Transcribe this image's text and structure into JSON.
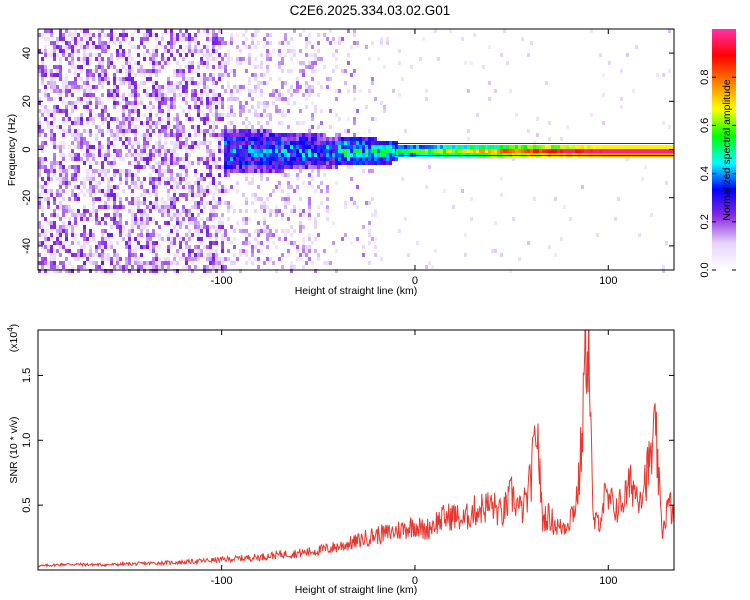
{
  "page": {
    "title": "C2E6.2025.334.03.02.G01"
  },
  "chart_data": [
    {
      "type": "heatmap",
      "xlabel": "Height of straight line (km)",
      "ylabel": "Frequency (Hz)",
      "xlim": [
        -195,
        134
      ],
      "ylim": [
        -50,
        50
      ],
      "xticks": [
        -100,
        0,
        100
      ],
      "yticks": [
        -40,
        -20,
        0,
        20,
        40
      ],
      "colorbar": {
        "label": "Normalized spectral amplitude",
        "range": [
          0.0,
          1.0
        ],
        "ticks": [
          0.0,
          0.2,
          0.4,
          0.6,
          0.8
        ],
        "tick_labels": [
          "0.0",
          "0.2",
          "0.4",
          "0.6",
          "0.8"
        ],
        "colormap": [
          "#ffffff",
          "#e6d4fb",
          "#8a2be2",
          "#0000ff",
          "#00ffff",
          "#00ff00",
          "#ffff00",
          "#ff8000",
          "#ff0000",
          "#ff33aa"
        ]
      },
      "features": {
        "signal_band_center_hz": 0,
        "noise_region_x_max_km": -20,
        "strong_band_start_km": -10
      }
    },
    {
      "type": "line",
      "xlabel": "Height of straight line (km)",
      "ylabel": "SNR (10 * v/v)",
      "multiplier_label": "(x10",
      "multiplier_exp": "4",
      "multiplier_close": ")",
      "xlim": [
        -195,
        134
      ],
      "ylim": [
        0,
        18500
      ],
      "xticks": [
        -100,
        0,
        100
      ],
      "yticks": [
        5000,
        10000,
        15000
      ],
      "ytick_labels": [
        "0.5",
        "1.0",
        "1.5"
      ],
      "series": [
        {
          "color": "#e8372e",
          "x": [
            -195,
            -180,
            -160,
            -140,
            -120,
            -100,
            -90,
            -80,
            -70,
            -60,
            -50,
            -40,
            -35,
            -30,
            -25,
            -20,
            -15,
            -10,
            -5,
            0,
            5,
            10,
            15,
            20,
            25,
            30,
            35,
            40,
            45,
            50,
            55,
            58,
            60,
            62,
            63,
            64,
            65,
            66,
            68,
            70,
            72,
            75,
            78,
            80,
            83,
            85,
            87,
            88,
            89,
            90,
            91,
            92,
            94,
            96,
            98,
            100,
            105,
            110,
            112,
            115,
            118,
            120,
            122,
            124,
            125,
            126,
            127,
            128,
            130,
            132,
            134
          ],
          "y": [
            300,
            450,
            400,
            500,
            600,
            800,
            900,
            1000,
            1200,
            1300,
            1500,
            1800,
            2000,
            2200,
            2500,
            2700,
            2800,
            3000,
            3200,
            3500,
            3000,
            3600,
            4000,
            4200,
            3800,
            4500,
            4800,
            5000,
            4200,
            5800,
            4500,
            5500,
            7000,
            9500,
            11500,
            9000,
            6000,
            3800,
            4200,
            4000,
            3600,
            3200,
            3500,
            4000,
            5000,
            7000,
            12000,
            17000,
            18200,
            17500,
            11000,
            4000,
            3500,
            4200,
            5500,
            5200,
            4800,
            6000,
            6800,
            5800,
            6500,
            7500,
            8500,
            10500,
            9500,
            7000,
            4500,
            3000,
            4500,
            5000,
            3800
          ]
        }
      ]
    }
  ]
}
